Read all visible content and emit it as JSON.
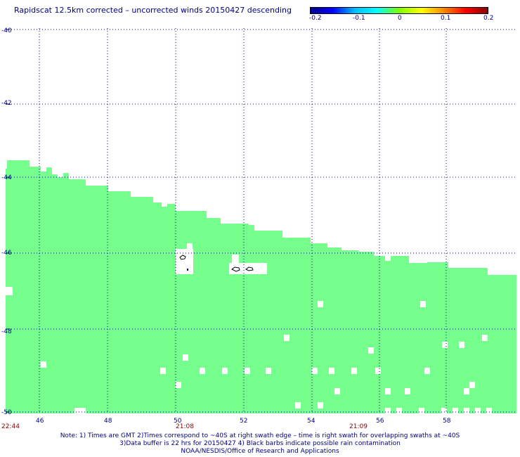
{
  "title": "Rapidscat 12.5km corrected – uncorrected winds 20150427 descending",
  "colorbar": {
    "labels": [
      "-0.2",
      "-0.1",
      "0",
      "0.1",
      "0.2"
    ],
    "stops": [
      "#00008b",
      "#0000ff",
      "#00bfff",
      "#00ffff",
      "#7fff00",
      "#ffff00",
      "#ff8c00",
      "#ff0000",
      "#8b0000"
    ]
  },
  "axes": {
    "y_labels": [
      "-40",
      "-42",
      "-44",
      "-46",
      "-48",
      "-50"
    ],
    "x_labels": [
      "46",
      "48",
      "50",
      "52",
      "54",
      "56",
      "58"
    ],
    "time_labels": [
      "22:44",
      "21:08",
      "21:09"
    ]
  },
  "swath_color": "#77ff8e",
  "notes": [
    "Note: 1) Times are GMT 2)Times correspond to ~40S at right swath edge – time is right swath for overlapping swaths at ~40S",
    "3)Data buffer is 22 hrs for 20150427 4) Black barbs indicate possible rain contamination",
    "NOAA/NESDIS/Office of Research and Applications"
  ]
}
